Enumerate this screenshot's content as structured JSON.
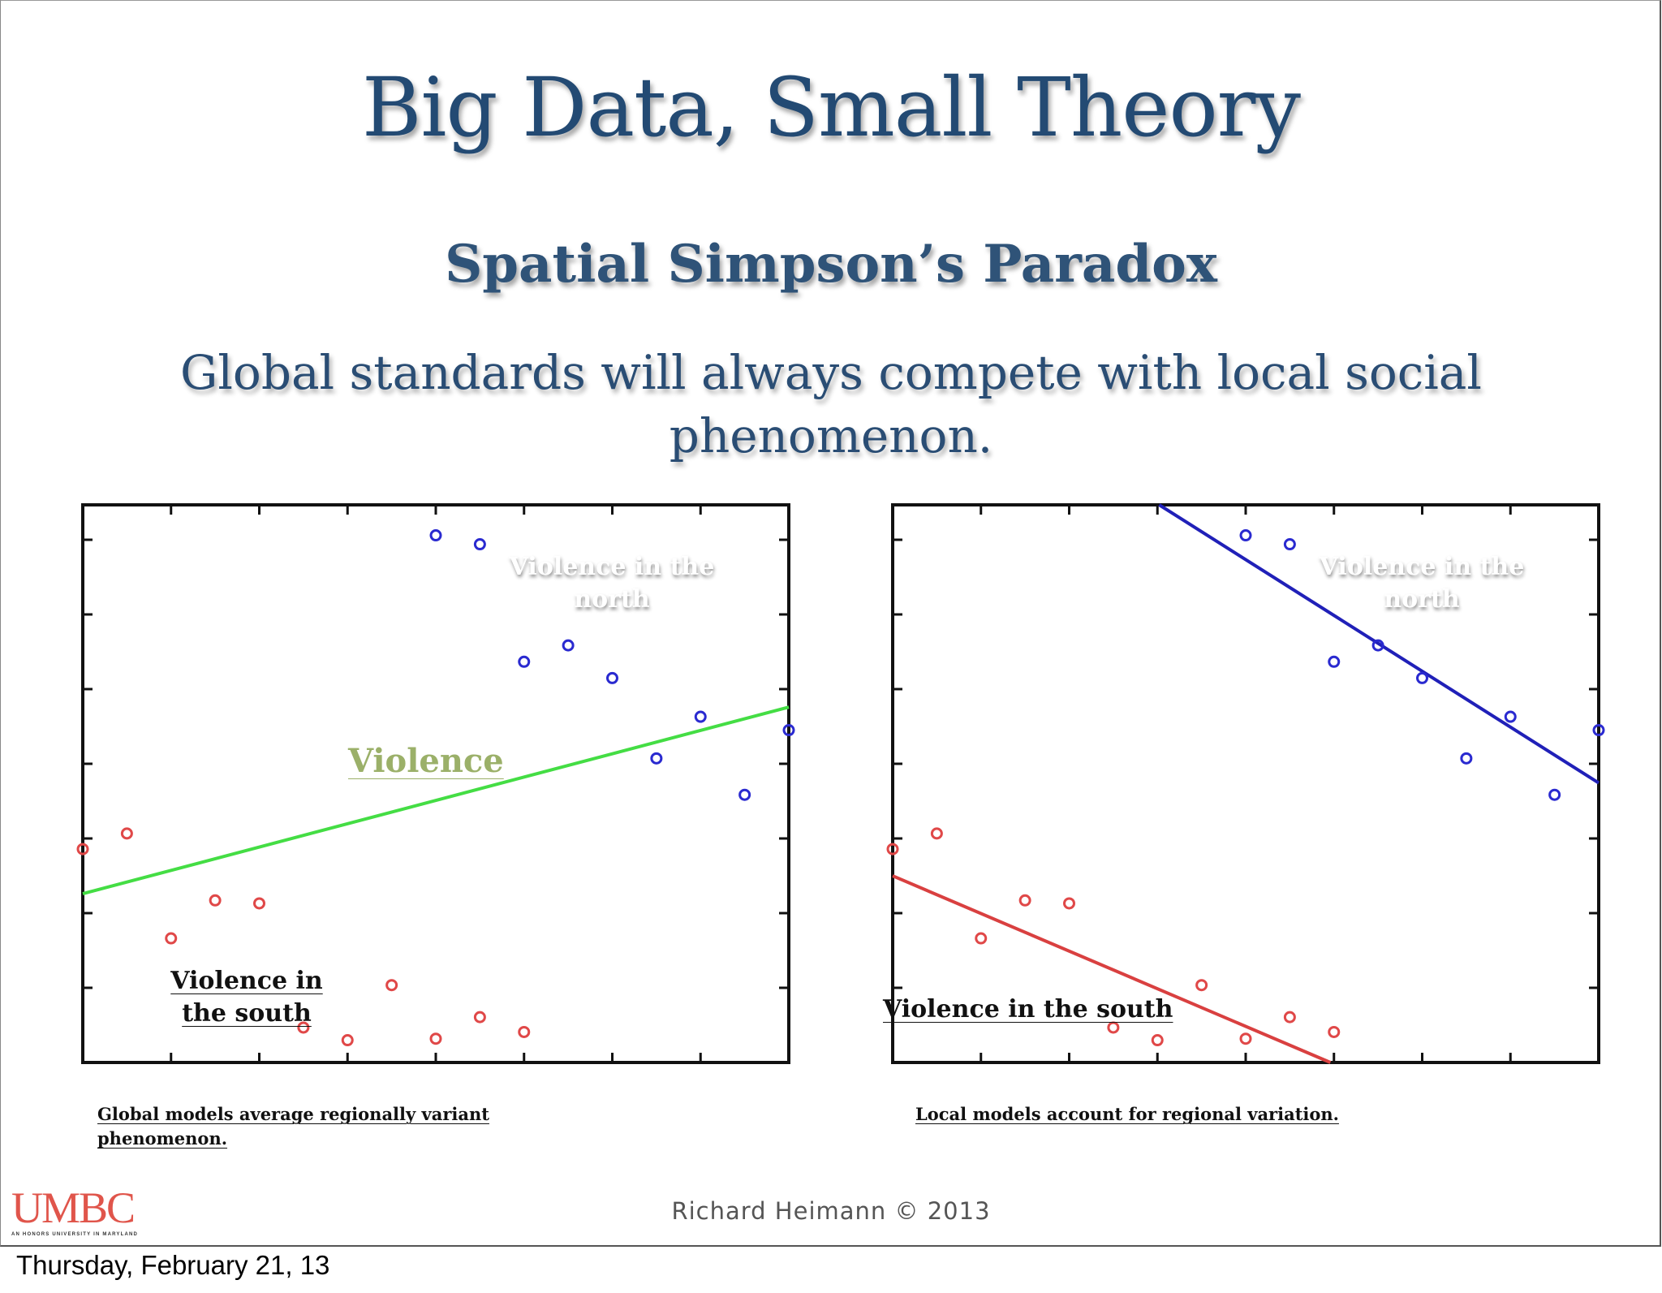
{
  "slide": {
    "title": "Big Data, Small Theory",
    "subtitle": "Spatial Simpson’s Paradox",
    "statement_line1": "Global standards will always compete with local social",
    "statement_line2": "phenomenon.",
    "left_caption_line1": "Global models average regionally variant",
    "left_caption_line2": "phenomenon.",
    "right_caption": "Local models account for regional variation.",
    "copyright": "Richard Heimann © 2013",
    "logo_text": "UMBC",
    "logo_tagline": "AN HONORS UNIVERSITY IN MARYLAND",
    "date_footer": "Thursday, February 21, 13"
  },
  "colors": {
    "title": "#234a73",
    "south_points": "#e04848",
    "north_points": "#2a2ad0",
    "global_fit": "#44dd44",
    "south_fit": "#d94040",
    "north_fit": "#2020b8",
    "violence_label": "#9bb069",
    "logo": "#e0554b"
  },
  "chart_data": [
    {
      "type": "scatter",
      "title": "",
      "xlabel": "",
      "ylabel": "",
      "xlim": [
        0,
        8
      ],
      "ylim": [
        0,
        7.5
      ],
      "grid": false,
      "annotations": [
        {
          "text": "Violence",
          "color": "#9bb069"
        },
        {
          "text": "Violence in the north",
          "color": "#ffffff"
        },
        {
          "text": "Violence in the south",
          "color": "#111111"
        }
      ],
      "series": [
        {
          "name": "Violence in the south",
          "color": "#e04848",
          "x": [
            0,
            0.5,
            1,
            1.5,
            2,
            2.5,
            3,
            3.5,
            4,
            4.5,
            5
          ],
          "y": [
            2.87,
            3.08,
            1.67,
            2.18,
            2.14,
            0.47,
            0.3,
            1.04,
            0.32,
            0.61,
            0.41
          ]
        },
        {
          "name": "Violence in the north",
          "color": "#2a2ad0",
          "x": [
            4,
            4.5,
            5,
            5.5,
            6,
            6.5,
            7,
            7.5,
            8
          ],
          "y": [
            7.09,
            6.97,
            5.39,
            5.61,
            5.17,
            4.09,
            4.65,
            3.6,
            4.47
          ]
        }
      ],
      "fit_lines": [
        {
          "name": "Violence (global fit)",
          "color": "#44dd44",
          "x": [
            0,
            8
          ],
          "y": [
            2.27,
            4.78
          ]
        }
      ]
    },
    {
      "type": "scatter",
      "title": "",
      "xlabel": "",
      "ylabel": "",
      "xlim": [
        0,
        8
      ],
      "ylim": [
        0,
        7.5
      ],
      "grid": false,
      "annotations": [
        {
          "text": "Violence in the north",
          "color": "#ffffff"
        },
        {
          "text": "Violence in the south",
          "color": "#111111"
        }
      ],
      "series": [
        {
          "name": "Violence in the south",
          "color": "#e04848",
          "x": [
            0,
            0.5,
            1,
            1.5,
            2,
            2.5,
            3,
            3.5,
            4,
            4.5,
            5
          ],
          "y": [
            2.87,
            3.08,
            1.67,
            2.18,
            2.14,
            0.47,
            0.3,
            1.04,
            0.32,
            0.61,
            0.41
          ]
        },
        {
          "name": "Violence in the north",
          "color": "#2a2ad0",
          "x": [
            4,
            4.5,
            5,
            5.5,
            6,
            6.5,
            7,
            7.5,
            8
          ],
          "y": [
            7.09,
            6.97,
            5.39,
            5.61,
            5.17,
            4.09,
            4.65,
            3.6,
            4.47
          ]
        }
      ],
      "fit_lines": [
        {
          "name": "South local fit",
          "color": "#d94040",
          "x": [
            0,
            4.96
          ],
          "y": [
            2.51,
            0
          ]
        },
        {
          "name": "North local fit",
          "color": "#2020b8",
          "x": [
            3.02,
            8
          ],
          "y": [
            7.5,
            3.76
          ]
        }
      ]
    }
  ]
}
